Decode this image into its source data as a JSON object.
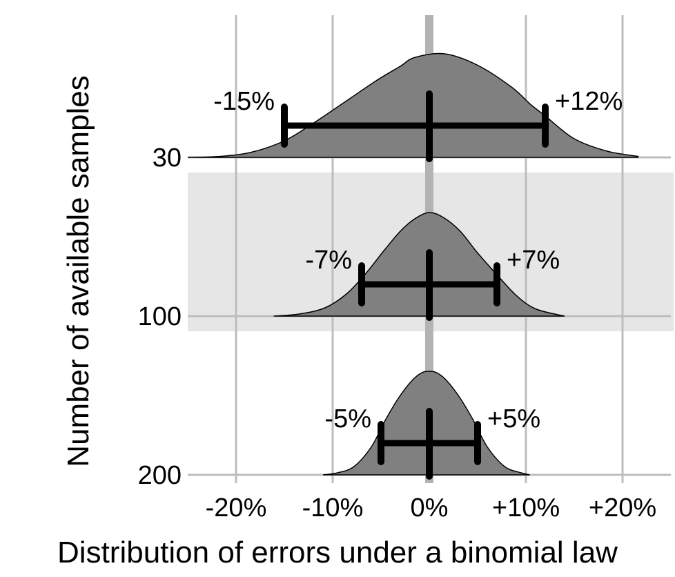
{
  "chart_data": {
    "type": "ridgeline",
    "xlabel": "Distribution of errors under a binomial law",
    "ylabel": "Number of available samples",
    "x_unit_suffix": "%",
    "xlim": [
      -25,
      25
    ],
    "x_ticks": [
      -20,
      -10,
      0,
      10,
      20
    ],
    "x_tick_labels": [
      "-20%",
      "-10%",
      "0%",
      "+10%",
      "+20%"
    ],
    "grid": true,
    "highlight_band": "100",
    "series": [
      {
        "samples": 30,
        "label": "30",
        "ci_low": -15,
        "ci_high": 12,
        "ci_low_label": "-15%",
        "ci_high_label": "+12%",
        "density": [
          [
            -25.0,
            0.0
          ],
          [
            -21.6,
            0.01
          ],
          [
            -18.4,
            0.05
          ],
          [
            -15.0,
            0.16
          ],
          [
            -12.0,
            0.33
          ],
          [
            -8.5,
            0.55
          ],
          [
            -5.5,
            0.74
          ],
          [
            -3.0,
            0.88
          ],
          [
            -1.5,
            0.965
          ],
          [
            1.6,
            1.0
          ],
          [
            5.0,
            0.89
          ],
          [
            8.5,
            0.68
          ],
          [
            10.5,
            0.51
          ],
          [
            12.0,
            0.4
          ],
          [
            15.0,
            0.18
          ],
          [
            18.4,
            0.06
          ],
          [
            21.6,
            0.01
          ]
        ]
      },
      {
        "samples": 100,
        "label": "100",
        "ci_low": -7,
        "ci_high": 7,
        "ci_low_label": "-7%",
        "ci_high_label": "+7%",
        "density": [
          [
            -16.1,
            0.0
          ],
          [
            -13.5,
            0.02
          ],
          [
            -10.8,
            0.08
          ],
          [
            -8.5,
            0.22
          ],
          [
            -6.5,
            0.42
          ],
          [
            -4.8,
            0.62
          ],
          [
            -3.0,
            0.82
          ],
          [
            -1.5,
            0.94
          ],
          [
            0.0,
            1.0
          ],
          [
            1.5,
            0.95
          ],
          [
            3.2,
            0.82
          ],
          [
            5.0,
            0.61
          ],
          [
            7.0,
            0.4
          ],
          [
            9.0,
            0.2
          ],
          [
            11.0,
            0.07
          ],
          [
            14.0,
            0.0
          ]
        ]
      },
      {
        "samples": 200,
        "label": "200",
        "ci_low": -5,
        "ci_high": 5,
        "ci_low_label": "-5%",
        "ci_high_label": "+5%",
        "density": [
          [
            -11.0,
            0.0
          ],
          [
            -9.5,
            0.02
          ],
          [
            -7.8,
            0.08
          ],
          [
            -6.0,
            0.27
          ],
          [
            -4.6,
            0.52
          ],
          [
            -3.2,
            0.74
          ],
          [
            -1.8,
            0.91
          ],
          [
            -0.8,
            0.985
          ],
          [
            0.0,
            1.0
          ],
          [
            0.8,
            0.985
          ],
          [
            1.8,
            0.91
          ],
          [
            3.2,
            0.74
          ],
          [
            4.6,
            0.52
          ],
          [
            6.0,
            0.27
          ],
          [
            7.8,
            0.08
          ],
          [
            9.5,
            0.02
          ],
          [
            10.4,
            0.0
          ]
        ]
      }
    ]
  }
}
